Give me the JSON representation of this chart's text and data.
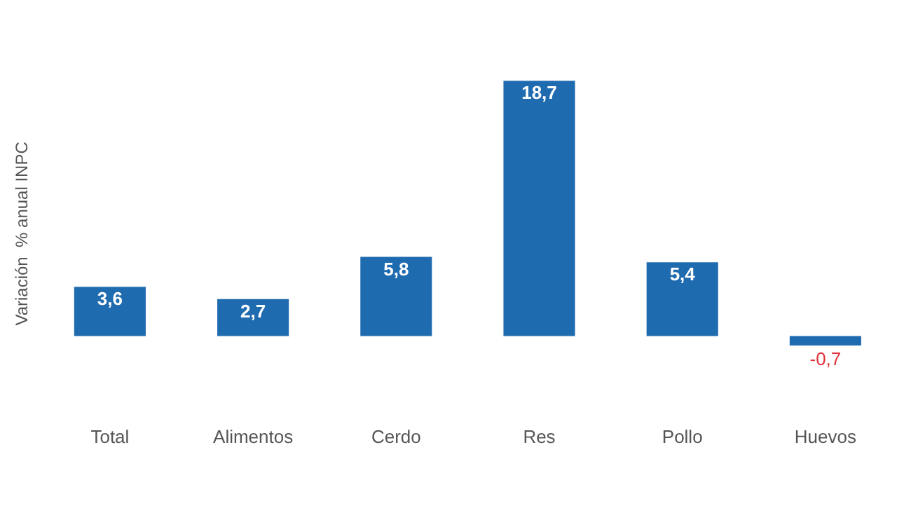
{
  "chart_data": {
    "type": "bar",
    "ylabel": "Variación  % anual INPC",
    "categories": [
      "Total",
      "Alimentos",
      "Cerdo",
      "Res",
      "Pollo",
      "Huevos"
    ],
    "values": [
      3.6,
      2.7,
      5.8,
      18.7,
      5.4,
      -0.7
    ],
    "value_labels": [
      "3,6",
      "2,7",
      "5,8",
      "18,7",
      "5,4",
      "-0,7"
    ],
    "color": "#1f6bb0",
    "grid": false,
    "legend": false
  }
}
